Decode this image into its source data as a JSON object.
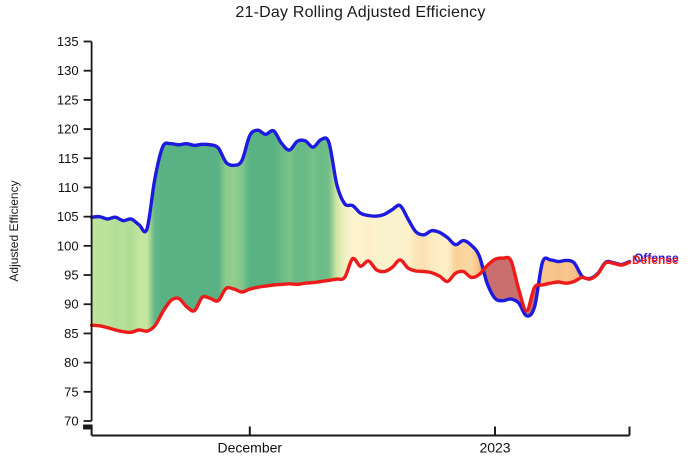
{
  "chart_data": {
    "type": "line",
    "title": "21-Day Rolling Adjusted Efficiency",
    "ylabel": "Adjusted Efficiency",
    "ylim": [
      70,
      135
    ],
    "yticks": [
      70,
      75,
      80,
      85,
      90,
      95,
      100,
      105,
      110,
      115,
      120,
      125,
      130,
      135
    ],
    "x_ticks": [
      {
        "label": "December",
        "index": 20
      },
      {
        "label": "2023",
        "index": 51
      }
    ],
    "grid": false,
    "legend_position": "right-end-of-lines",
    "axis_color": "#1a1a1a",
    "series": [
      {
        "name": "Offense",
        "color": "#1d1ae0",
        "values": [
          104.9,
          105.0,
          104.6,
          104.9,
          104.3,
          104.6,
          103.6,
          102.9,
          111.5,
          117.0,
          117.5,
          117.3,
          117.5,
          117.2,
          117.4,
          117.3,
          116.8,
          114.3,
          113.8,
          114.6,
          118.9,
          119.8,
          119.1,
          119.7,
          117.6,
          116.4,
          117.9,
          118.0,
          116.9,
          118.2,
          117.7,
          110.5,
          107.2,
          106.9,
          105.6,
          105.2,
          105.1,
          105.4,
          106.2,
          106.9,
          104.6,
          102.4,
          101.9,
          102.6,
          102.3,
          101.4,
          100.2,
          100.9,
          100.1,
          98.3,
          93.6,
          91.0,
          90.6,
          90.9,
          90.2,
          88.0,
          89.6,
          97.2,
          97.6,
          97.3,
          97.5,
          97.1,
          94.8,
          94.4,
          95.3,
          97.2,
          97.1,
          96.8,
          97.3
        ]
      },
      {
        "name": "Defense",
        "color": "#ee1b1b",
        "values": [
          86.4,
          86.3,
          86.0,
          85.6,
          85.3,
          85.2,
          85.6,
          85.4,
          86.3,
          88.7,
          90.6,
          91.0,
          89.6,
          88.9,
          91.2,
          91.0,
          90.6,
          92.7,
          92.6,
          92.1,
          92.6,
          92.9,
          93.1,
          93.3,
          93.4,
          93.5,
          93.4,
          93.6,
          93.7,
          93.9,
          94.1,
          94.3,
          94.6,
          97.8,
          96.5,
          97.4,
          95.9,
          95.6,
          96.3,
          97.6,
          96.2,
          95.7,
          95.6,
          95.4,
          94.8,
          93.9,
          95.3,
          95.6,
          94.6,
          95.1,
          96.6,
          97.7,
          97.9,
          97.5,
          92.5,
          88.9,
          92.9,
          93.3,
          93.6,
          93.8,
          93.6,
          93.9,
          94.6,
          94.3,
          95.2,
          97.1,
          97.0,
          96.7,
          97.2
        ]
      }
    ],
    "band": {
      "description": "area between Offense and Defense, colored by gap size",
      "negative_color": "#c96f6d",
      "gap_color_scale": [
        [
          0.0,
          "#f2aa72"
        ],
        [
          3.0,
          "#f6bd83"
        ],
        [
          5.5,
          "#fad7a1"
        ],
        [
          7.5,
          "#fdeec6"
        ],
        [
          9.0,
          "#fdf3cf"
        ],
        [
          13.0,
          "#eff0c2"
        ],
        [
          16.0,
          "#d3e8a6"
        ],
        [
          18.5,
          "#bfe49a"
        ],
        [
          21.0,
          "#96cf90"
        ],
        [
          24.0,
          "#6cbc87"
        ],
        [
          26.0,
          "#59b284"
        ]
      ]
    }
  }
}
